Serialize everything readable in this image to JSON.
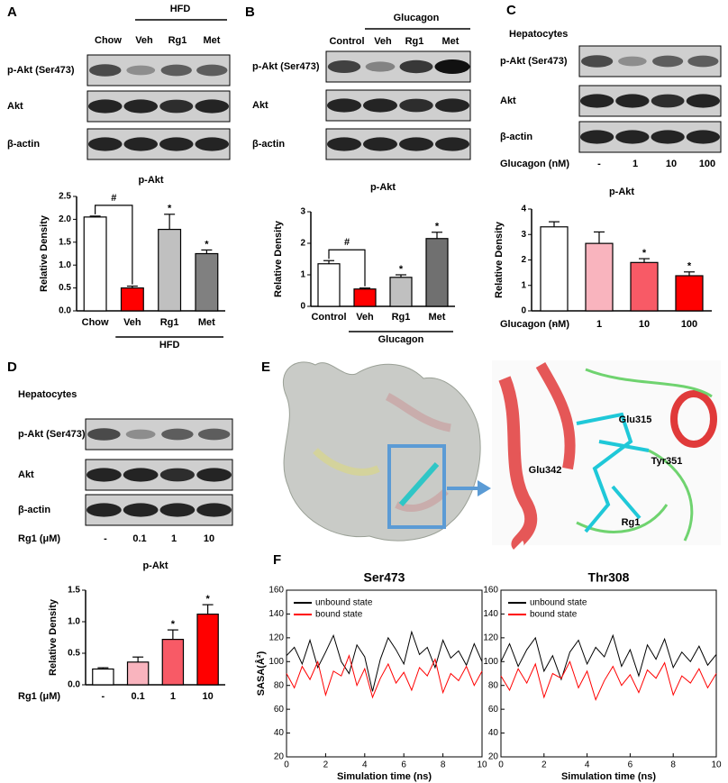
{
  "panels": [
    {
      "letter": "A",
      "group": "HFD",
      "lanes": [
        "Chow",
        "Veh",
        "Rg1",
        "Met"
      ],
      "rows": [
        "p-Akt (Ser473)",
        "Akt",
        "β-actin"
      ]
    },
    {
      "letter": "B",
      "group": "Glucagon",
      "lanes": [
        "Control",
        "Veh",
        "Rg1",
        "Met"
      ],
      "rows": [
        "p-Akt (Ser473)",
        "Akt",
        "β-actin"
      ]
    },
    {
      "letter": "C",
      "cell": "Hepatocytes",
      "rows": [
        "p-Akt (Ser473)",
        "Akt",
        "β-actin"
      ],
      "dose_label": "Glucagon (nM)",
      "lanes": [
        "-",
        "1",
        "10",
        "100"
      ]
    },
    {
      "letter": "D",
      "cell": "Hepatocytes",
      "rows": [
        "p-Akt (Ser473)",
        "Akt",
        "β-actin"
      ],
      "dose_label": "Rg1 (μM)",
      "lanes": [
        "-",
        "0.1",
        "1",
        "10"
      ]
    },
    {
      "letter": "E",
      "residues": [
        "Glu315",
        "Glu342",
        "Tyr351",
        "Rg1"
      ]
    },
    {
      "letter": "F"
    }
  ],
  "chart_data": [
    {
      "type": "bar",
      "title": "p-Akt",
      "y_label": "Relative Density",
      "group": "HFD",
      "categories": [
        "Chow",
        "Veh",
        "Rg1",
        "Met"
      ],
      "values": [
        2.05,
        0.5,
        1.78,
        1.25
      ],
      "errors": [
        0.02,
        0.04,
        0.33,
        0.08
      ],
      "colors": [
        "#ffffff",
        "#ff0000",
        "#c0c0c0",
        "#808080"
      ],
      "markers": [
        null,
        "#",
        "*",
        "*"
      ],
      "ylim": [
        0,
        2.5
      ],
      "yticks": [
        {
          "value": 0,
          "label": "0.0"
        },
        0.5,
        {
          "value": 1,
          "label": "1.0"
        },
        1.5,
        {
          "value": 2,
          "label": "2.0"
        },
        2.5
      ]
    },
    {
      "type": "bar",
      "title": "p-Akt",
      "y_label": "Relative Density",
      "group": "Glucagon",
      "categories": [
        "Control",
        "Veh",
        "Rg1",
        "Met"
      ],
      "values": [
        1.35,
        0.55,
        0.92,
        2.15
      ],
      "errors": [
        0.1,
        0.03,
        0.08,
        0.2
      ],
      "colors": [
        "#ffffff",
        "#ff0000",
        "#c0c0c0",
        "#707070"
      ],
      "markers": [
        null,
        "#",
        "*",
        "*"
      ],
      "ylim": [
        0,
        3
      ],
      "yticks": [
        0,
        1,
        2,
        3
      ]
    },
    {
      "type": "bar",
      "title": "p-Akt",
      "y_label": "Relative Density",
      "x_label": "Glucagon (nM)",
      "categories": [
        "-",
        "1",
        "10",
        "100"
      ],
      "values": [
        3.3,
        2.65,
        1.9,
        1.38
      ],
      "errors": [
        0.2,
        0.45,
        0.15,
        0.15
      ],
      "colors": [
        "#ffffff",
        "#f9b4be",
        "#f85a66",
        "#ff0000"
      ],
      "markers": [
        null,
        null,
        "*",
        "*"
      ],
      "ylim": [
        0,
        4
      ],
      "yticks": [
        0,
        1,
        2,
        3,
        4
      ]
    },
    {
      "type": "bar",
      "title": "p-Akt",
      "y_label": "Relative Density",
      "x_label": "Rg1 (μM)",
      "categories": [
        "-",
        "0.1",
        "1",
        "10"
      ],
      "values": [
        0.25,
        0.36,
        0.72,
        1.12
      ],
      "errors": [
        0.02,
        0.08,
        0.15,
        0.15
      ],
      "colors": [
        "#ffffff",
        "#f9b4be",
        "#f85a66",
        "#ff0000"
      ],
      "markers": [
        null,
        null,
        "*",
        "*"
      ],
      "ylim": [
        0,
        1.5
      ],
      "yticks": [
        {
          "value": 0,
          "label": "0.0"
        },
        0.5,
        {
          "value": 1,
          "label": "1.0"
        },
        1.5
      ]
    },
    {
      "type": "line",
      "title": "Ser473",
      "x_label": "Simulation time (ns)",
      "y_label": "SASA(Å²)",
      "legend": "upper-left",
      "x": [
        0,
        0.4,
        0.8,
        1.2,
        1.6,
        2,
        2.4,
        2.8,
        3.2,
        3.6,
        4,
        4.4,
        4.8,
        5.2,
        5.6,
        6,
        6.4,
        6.8,
        7.2,
        7.6,
        8,
        8.4,
        8.8,
        9.2,
        9.6,
        10
      ],
      "series": [
        {
          "name": "unbound state",
          "color": "#000000",
          "values": [
            105,
            112,
            98,
            118,
            95,
            108,
            122,
            100,
            90,
            114,
            104,
            75,
            102,
            120,
            110,
            98,
            125,
            106,
            112,
            95,
            118,
            103,
            109,
            97,
            115,
            100
          ]
        },
        {
          "name": "bound state",
          "color": "#ff0000",
          "values": [
            90,
            78,
            96,
            85,
            100,
            72,
            92,
            88,
            105,
            80,
            94,
            70,
            86,
            98,
            82,
            91,
            76,
            95,
            88,
            102,
            74,
            90,
            84,
            96,
            80,
            92
          ]
        }
      ],
      "xlim": [
        0,
        10
      ],
      "xticks": [
        0,
        2,
        4,
        6,
        8,
        10
      ],
      "ylim": [
        20,
        160
      ],
      "yticks": [
        20,
        40,
        60,
        80,
        100,
        120,
        140,
        160
      ]
    },
    {
      "type": "line",
      "title": "Thr308",
      "x_label": "Simulation time (ns)",
      "legend": "upper-left",
      "x": [
        0,
        0.4,
        0.8,
        1.2,
        1.6,
        2,
        2.4,
        2.8,
        3.2,
        3.6,
        4,
        4.4,
        4.8,
        5.2,
        5.6,
        6,
        6.4,
        6.8,
        7.2,
        7.6,
        8,
        8.4,
        8.8,
        9.2,
        9.6,
        10
      ],
      "series": [
        {
          "name": "unbound state",
          "color": "#000000",
          "values": [
            100,
            115,
            96,
            110,
            120,
            92,
            105,
            85,
            108,
            118,
            98,
            112,
            104,
            122,
            96,
            110,
            88,
            114,
            102,
            119,
            95,
            108,
            100,
            113,
            97,
            106
          ]
        },
        {
          "name": "bound state",
          "color": "#ff0000",
          "values": [
            88,
            76,
            94,
            82,
            98,
            70,
            90,
            86,
            100,
            78,
            92,
            68,
            84,
            96,
            80,
            89,
            74,
            93,
            86,
            99,
            72,
            88,
            82,
            94,
            78,
            90
          ]
        }
      ],
      "xlim": [
        0,
        10
      ],
      "xticks": [
        0,
        2,
        4,
        6,
        8,
        10
      ],
      "ylim": [
        20,
        160
      ],
      "yticks": [
        20,
        40,
        60,
        80,
        100,
        120,
        140,
        160
      ]
    }
  ]
}
